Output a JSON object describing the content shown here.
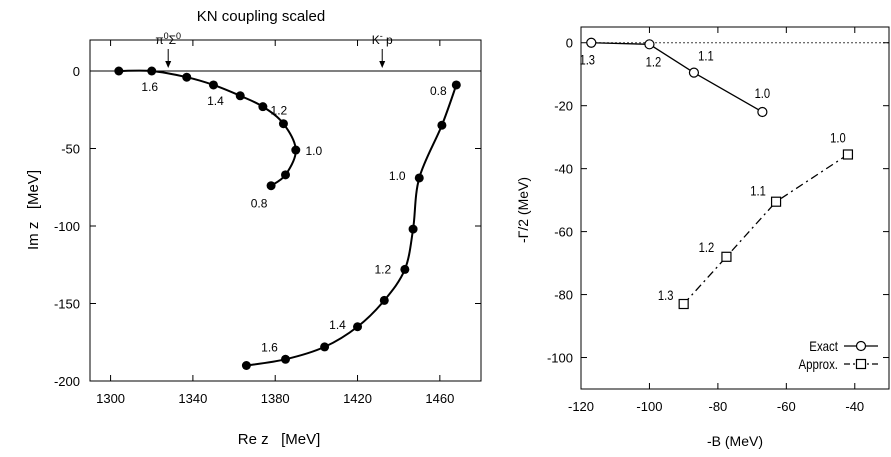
{
  "chart_data": [
    {
      "type": "line",
      "title": "KN coupling scaled",
      "xlabel": "Re z   [MeV]",
      "ylabel": "Im z   [MeV]",
      "xlim": [
        1290,
        1480
      ],
      "ylim": [
        -200,
        20
      ],
      "xticks": [
        1300,
        1340,
        1380,
        1420,
        1460
      ],
      "yticks": [
        0,
        -50,
        -100,
        -150,
        -200
      ],
      "grid": false,
      "threshold_labels": [
        {
          "text_main": "π",
          "sup1": "0",
          "mid": "Σ",
          "sup2": "0",
          "x": 1328
        },
        {
          "text_main": "K",
          "sup1": "-",
          "mid": " p",
          "sup2": "",
          "x": 1432
        }
      ],
      "series": [
        {
          "points": [
            {
              "x": 1304,
              "y": 0
            },
            {
              "x": 1320,
              "y": 0
            },
            {
              "x": 1337,
              "y": -4
            },
            {
              "x": 1350,
              "y": -9
            },
            {
              "x": 1363,
              "y": -16
            },
            {
              "x": 1374,
              "y": -23
            },
            {
              "x": 1384,
              "y": -34
            },
            {
              "x": 1390,
              "y": -51
            },
            {
              "x": 1385,
              "y": -67
            },
            {
              "x": 1378,
              "y": -74
            }
          ],
          "labels": [
            {
              "text": "1.6",
              "x": 1320,
              "y": 0
            },
            {
              "text": "1.4",
              "x": 1350,
              "y": -9
            },
            {
              "text": "1.2",
              "x": 1374,
              "y": -23
            },
            {
              "text": "1.0",
              "x": 1390,
              "y": -51
            },
            {
              "text": "0.8",
              "x": 1378,
              "y": -74
            }
          ]
        },
        {
          "points": [
            {
              "x": 1468,
              "y": -9
            },
            {
              "x": 1461,
              "y": -35
            },
            {
              "x": 1450,
              "y": -69
            },
            {
              "x": 1447,
              "y": -102
            },
            {
              "x": 1443,
              "y": -128
            },
            {
              "x": 1433,
              "y": -148
            },
            {
              "x": 1420,
              "y": -165
            },
            {
              "x": 1404,
              "y": -178
            },
            {
              "x": 1385,
              "y": -186
            },
            {
              "x": 1366,
              "y": -190
            }
          ],
          "labels": [
            {
              "text": "0.8",
              "x": 1468,
              "y": -9
            },
            {
              "text": "1.0",
              "x": 1450,
              "y": -69
            },
            {
              "text": "1.2",
              "x": 1443,
              "y": -128
            },
            {
              "text": "1.4",
              "x": 1420,
              "y": -165
            },
            {
              "text": "1.6",
              "x": 1385,
              "y": -186
            }
          ]
        }
      ]
    },
    {
      "type": "line",
      "title": "",
      "xlabel": "-B (MeV)",
      "ylabel": "-Γ/2 (MeV)",
      "xlim": [
        -120,
        -30
      ],
      "ylim": [
        -110,
        5
      ],
      "xticks": [
        -120,
        -100,
        -80,
        -60,
        -40
      ],
      "yticks": [
        0,
        -20,
        -40,
        -60,
        -80,
        -100
      ],
      "grid": false,
      "reference_line_y": 0,
      "legend_position": "bottom-right",
      "series": [
        {
          "name": "Exact",
          "marker": "circle",
          "dash": "solid",
          "points": [
            {
              "x": -117,
              "y": 0
            },
            {
              "x": -100,
              "y": -0.5
            },
            {
              "x": -87,
              "y": -9.5
            },
            {
              "x": -67,
              "y": -22
            }
          ],
          "labels": [
            "1.3",
            "1.2",
            "1.1",
            "1.0"
          ]
        },
        {
          "name": "Approx.",
          "marker": "square",
          "dash": "dashdot",
          "points": [
            {
              "x": -42,
              "y": -35.5
            },
            {
              "x": -63,
              "y": -50.5
            },
            {
              "x": -77.5,
              "y": -68
            },
            {
              "x": -90,
              "y": -83
            }
          ],
          "labels": [
            "1.0",
            "1.1",
            "1.2",
            "1.3"
          ]
        }
      ]
    }
  ]
}
